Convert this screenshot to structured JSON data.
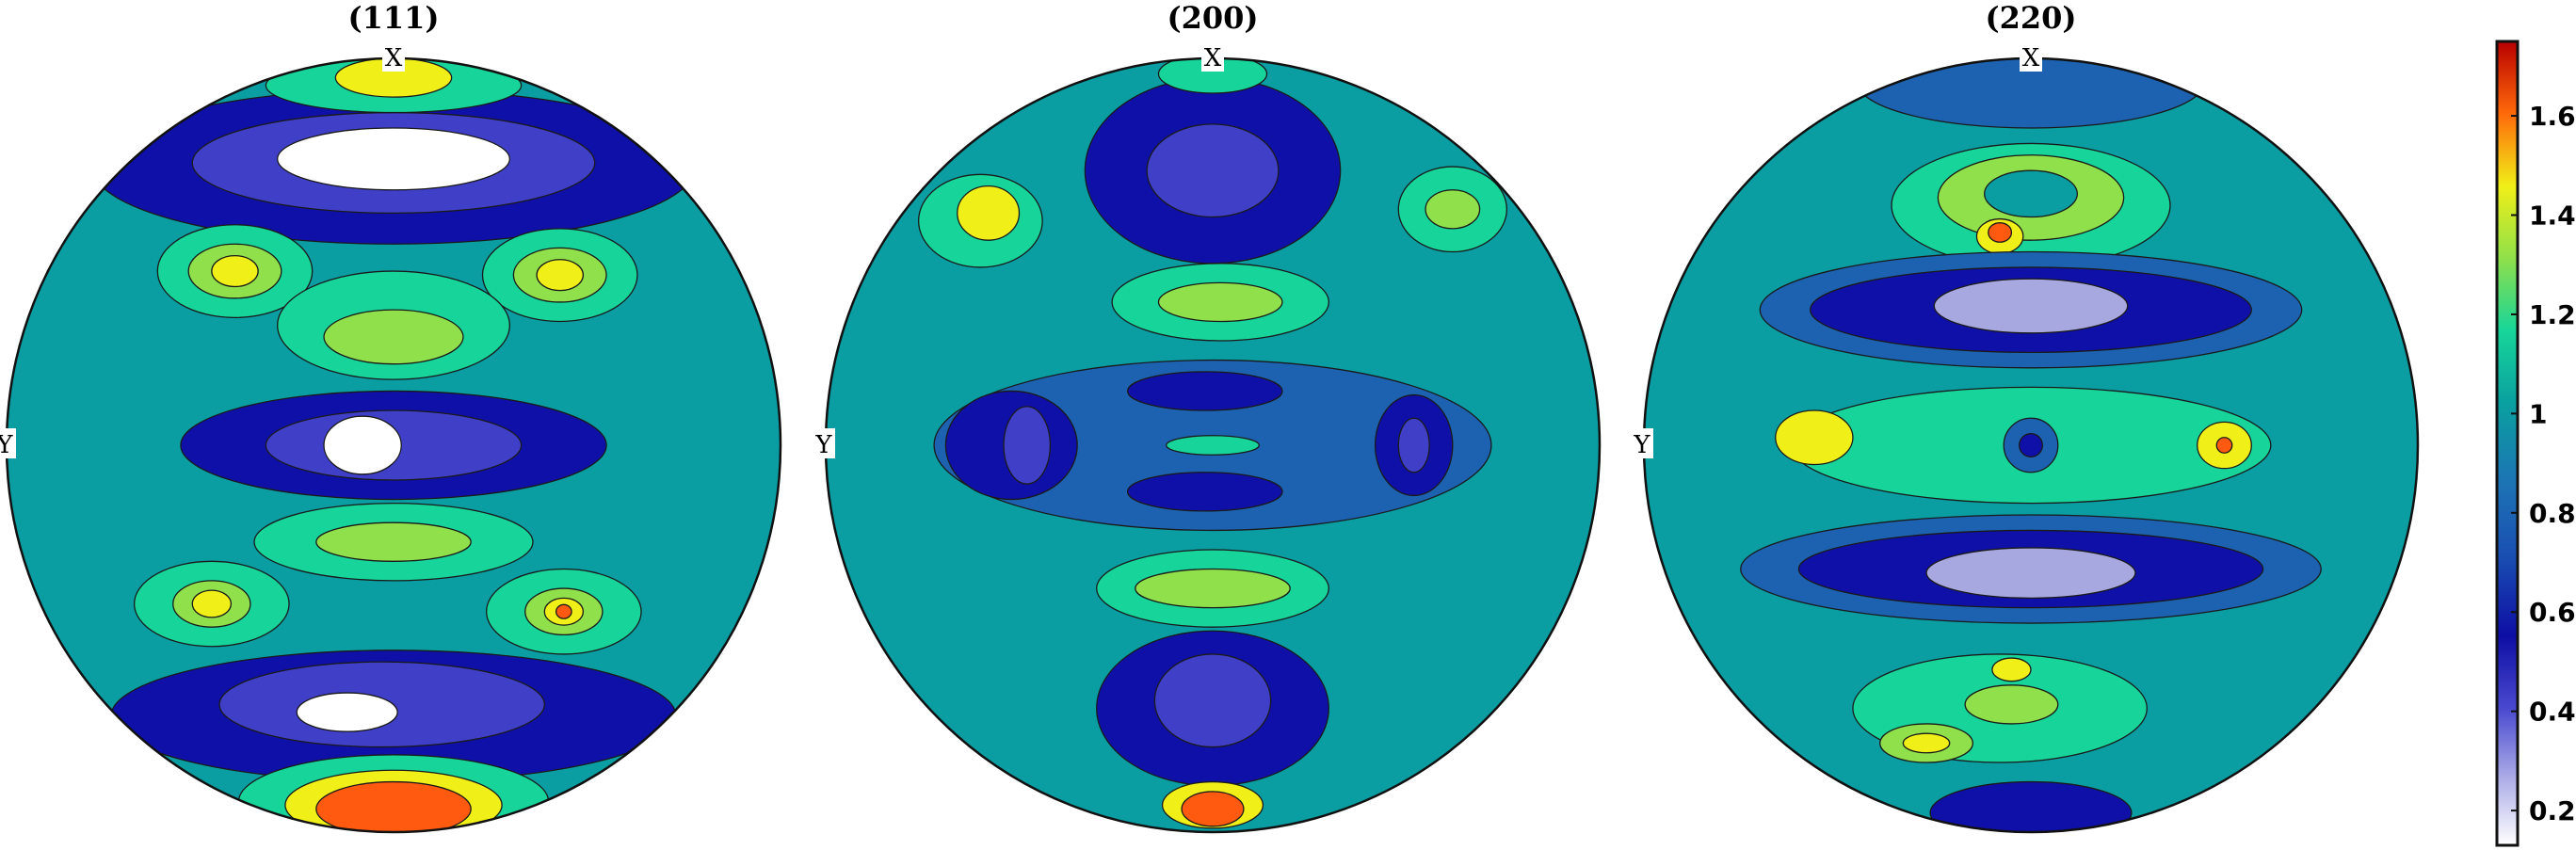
{
  "chart_data": {
    "type": "contour",
    "colorbar": {
      "ticks": [
        "0.2",
        "0.4",
        "0.6",
        "0.8",
        "1",
        "1.2",
        "1.4",
        "1.6"
      ],
      "tick_values": [
        0.2,
        0.4,
        0.6,
        0.8,
        1.0,
        1.2,
        1.4,
        1.6
      ],
      "range": [
        0.13,
        1.75
      ]
    },
    "level_colors": [
      "#ffffff",
      "#a8a8e0",
      "#3f3fc8",
      "#0f10a8",
      "#1d62b0",
      "#0a9ea3",
      "#17d59a",
      "#8fe04a",
      "#f0ef18",
      "#ff5a0f"
    ],
    "plots": [
      {
        "title": "(111)",
        "x_label": "X",
        "y_label": "Y",
        "levels": [
          {
            "shape": "ellipse",
            "cx": 0,
            "cy": 0,
            "rx": 1,
            "ry": 1,
            "level": 5
          },
          {
            "shape": "ellipse",
            "cx": 0,
            "cy": -0.72,
            "rx": 0.78,
            "ry": 0.2,
            "level": 3
          },
          {
            "shape": "ellipse",
            "cx": 0,
            "cy": -0.73,
            "rx": 0.52,
            "ry": 0.13,
            "level": 2
          },
          {
            "shape": "ellipse",
            "cx": 0,
            "cy": -0.74,
            "rx": 0.3,
            "ry": 0.08,
            "level": 0
          },
          {
            "shape": "ellipse",
            "cx": 0,
            "cy": -0.93,
            "rx": 0.33,
            "ry": 0.07,
            "level": 6
          },
          {
            "shape": "ellipse",
            "cx": 0,
            "cy": -0.95,
            "rx": 0.15,
            "ry": 0.05,
            "level": 8
          },
          {
            "shape": "ellipse",
            "cx": -0.41,
            "cy": -0.45,
            "rx": 0.2,
            "ry": 0.12,
            "level": 6
          },
          {
            "shape": "ellipse",
            "cx": -0.41,
            "cy": -0.45,
            "rx": 0.12,
            "ry": 0.07,
            "level": 7
          },
          {
            "shape": "ellipse",
            "cx": -0.41,
            "cy": -0.45,
            "rx": 0.06,
            "ry": 0.04,
            "level": 8
          },
          {
            "shape": "ellipse",
            "cx": 0.43,
            "cy": -0.44,
            "rx": 0.2,
            "ry": 0.12,
            "level": 6
          },
          {
            "shape": "ellipse",
            "cx": 0.43,
            "cy": -0.44,
            "rx": 0.12,
            "ry": 0.07,
            "level": 7
          },
          {
            "shape": "ellipse",
            "cx": 0.43,
            "cy": -0.44,
            "rx": 0.06,
            "ry": 0.04,
            "level": 8
          },
          {
            "shape": "ellipse",
            "cx": 0,
            "cy": -0.31,
            "rx": 0.3,
            "ry": 0.14,
            "level": 6
          },
          {
            "shape": "ellipse",
            "cx": 0,
            "cy": -0.28,
            "rx": 0.18,
            "ry": 0.07,
            "level": 7
          },
          {
            "shape": "ellipse",
            "cx": 0,
            "cy": 0,
            "rx": 0.55,
            "ry": 0.14,
            "level": 3
          },
          {
            "shape": "ellipse",
            "cx": 0,
            "cy": 0,
            "rx": 0.33,
            "ry": 0.09,
            "level": 2
          },
          {
            "shape": "ellipse",
            "cx": -0.08,
            "cy": 0,
            "rx": 0.1,
            "ry": 0.075,
            "level": 0
          },
          {
            "shape": "ellipse",
            "cx": 0,
            "cy": 0.25,
            "rx": 0.36,
            "ry": 0.1,
            "level": 6
          },
          {
            "shape": "ellipse",
            "cx": 0,
            "cy": 0.25,
            "rx": 0.2,
            "ry": 0.05,
            "level": 7
          },
          {
            "shape": "ellipse",
            "cx": -0.47,
            "cy": 0.41,
            "rx": 0.2,
            "ry": 0.11,
            "level": 6
          },
          {
            "shape": "ellipse",
            "cx": -0.47,
            "cy": 0.41,
            "rx": 0.1,
            "ry": 0.06,
            "level": 7
          },
          {
            "shape": "ellipse",
            "cx": -0.47,
            "cy": 0.41,
            "rx": 0.05,
            "ry": 0.035,
            "level": 8
          },
          {
            "shape": "ellipse",
            "cx": 0.44,
            "cy": 0.43,
            "rx": 0.2,
            "ry": 0.11,
            "level": 6
          },
          {
            "shape": "ellipse",
            "cx": 0.44,
            "cy": 0.43,
            "rx": 0.1,
            "ry": 0.06,
            "level": 7
          },
          {
            "shape": "ellipse",
            "cx": 0.44,
            "cy": 0.43,
            "rx": 0.05,
            "ry": 0.035,
            "level": 8
          },
          {
            "shape": "ellipse",
            "cx": 0.44,
            "cy": 0.43,
            "rx": 0.02,
            "ry": 0.018,
            "level": 9
          },
          {
            "shape": "ellipse",
            "cx": 0,
            "cy": 0.7,
            "rx": 0.73,
            "ry": 0.17,
            "level": 3
          },
          {
            "shape": "ellipse",
            "cx": -0.03,
            "cy": 0.67,
            "rx": 0.42,
            "ry": 0.11,
            "level": 2
          },
          {
            "shape": "ellipse",
            "cx": -0.12,
            "cy": 0.69,
            "rx": 0.13,
            "ry": 0.05,
            "level": 0
          },
          {
            "shape": "ellipse",
            "cx": 0,
            "cy": 0.92,
            "rx": 0.4,
            "ry": 0.12,
            "level": 6
          },
          {
            "shape": "ellipse",
            "cx": 0,
            "cy": 0.93,
            "rx": 0.28,
            "ry": 0.09,
            "level": 8
          },
          {
            "shape": "ellipse",
            "cx": 0,
            "cy": 0.94,
            "rx": 0.2,
            "ry": 0.07,
            "level": 9
          }
        ]
      },
      {
        "title": "(200)",
        "x_label": "X",
        "y_label": "Y",
        "levels": [
          {
            "shape": "ellipse",
            "cx": 0,
            "cy": 0,
            "rx": 1,
            "ry": 1,
            "level": 5
          },
          {
            "shape": "ellipse",
            "cx": 0,
            "cy": -0.71,
            "rx": 0.33,
            "ry": 0.24,
            "level": 3
          },
          {
            "shape": "ellipse",
            "cx": 0,
            "cy": -0.71,
            "rx": 0.17,
            "ry": 0.12,
            "level": 2
          },
          {
            "shape": "ellipse",
            "cx": 0,
            "cy": -0.96,
            "rx": 0.14,
            "ry": 0.05,
            "level": 6
          },
          {
            "shape": "ellipse",
            "cx": -0.6,
            "cy": -0.58,
            "rx": 0.16,
            "ry": 0.12,
            "level": 6
          },
          {
            "shape": "ellipse",
            "cx": -0.58,
            "cy": -0.6,
            "rx": 0.08,
            "ry": 0.07,
            "level": 8
          },
          {
            "shape": "ellipse",
            "cx": 0.62,
            "cy": -0.61,
            "rx": 0.14,
            "ry": 0.11,
            "level": 6
          },
          {
            "shape": "ellipse",
            "cx": 0.62,
            "cy": -0.61,
            "rx": 0.07,
            "ry": 0.05,
            "level": 7
          },
          {
            "shape": "ellipse",
            "cx": 0.02,
            "cy": -0.37,
            "rx": 0.28,
            "ry": 0.1,
            "level": 6
          },
          {
            "shape": "ellipse",
            "cx": 0.02,
            "cy": -0.37,
            "rx": 0.16,
            "ry": 0.05,
            "level": 7
          },
          {
            "shape": "ellipse",
            "cx": 0,
            "cy": 0,
            "rx": 0.72,
            "ry": 0.22,
            "level": 4
          },
          {
            "shape": "ellipse",
            "cx": -0.52,
            "cy": 0,
            "rx": 0.17,
            "ry": 0.14,
            "level": 3
          },
          {
            "shape": "ellipse",
            "cx": -0.48,
            "cy": 0,
            "rx": 0.06,
            "ry": 0.1,
            "level": 2
          },
          {
            "shape": "ellipse",
            "cx": 0.52,
            "cy": 0,
            "rx": 0.1,
            "ry": 0.13,
            "level": 3
          },
          {
            "shape": "ellipse",
            "cx": 0.52,
            "cy": 0,
            "rx": 0.04,
            "ry": 0.07,
            "level": 2
          },
          {
            "shape": "ellipse",
            "cx": -0.02,
            "cy": -0.14,
            "rx": 0.2,
            "ry": 0.05,
            "level": 3
          },
          {
            "shape": "ellipse",
            "cx": -0.02,
            "cy": 0.12,
            "rx": 0.2,
            "ry": 0.05,
            "level": 3
          },
          {
            "shape": "ellipse",
            "cx": 0,
            "cy": 0,
            "rx": 0.12,
            "ry": 0.025,
            "level": 6
          },
          {
            "shape": "ellipse",
            "cx": 0,
            "cy": 0.37,
            "rx": 0.3,
            "ry": 0.1,
            "level": 6
          },
          {
            "shape": "ellipse",
            "cx": 0,
            "cy": 0.37,
            "rx": 0.2,
            "ry": 0.05,
            "level": 7
          },
          {
            "shape": "ellipse",
            "cx": 0,
            "cy": 0.68,
            "rx": 0.3,
            "ry": 0.2,
            "level": 3
          },
          {
            "shape": "ellipse",
            "cx": 0,
            "cy": 0.66,
            "rx": 0.15,
            "ry": 0.12,
            "level": 2
          },
          {
            "shape": "ellipse",
            "cx": 0,
            "cy": 0.93,
            "rx": 0.13,
            "ry": 0.06,
            "level": 8
          },
          {
            "shape": "ellipse",
            "cx": 0,
            "cy": 0.94,
            "rx": 0.08,
            "ry": 0.045,
            "level": 9
          }
        ]
      },
      {
        "title": "(220)",
        "x_label": "X",
        "y_label": "Y",
        "levels": [
          {
            "shape": "ellipse",
            "cx": 0,
            "cy": 0,
            "rx": 1,
            "ry": 1,
            "level": 5
          },
          {
            "shape": "ellipse",
            "cx": 0,
            "cy": -0.94,
            "rx": 0.45,
            "ry": 0.12,
            "level": 4
          },
          {
            "shape": "ellipse",
            "cx": 0,
            "cy": -0.62,
            "rx": 0.36,
            "ry": 0.16,
            "level": 6
          },
          {
            "shape": "ellipse",
            "cx": 0,
            "cy": -0.64,
            "rx": 0.24,
            "ry": 0.11,
            "level": 7
          },
          {
            "shape": "ellipse",
            "cx": 0,
            "cy": -0.65,
            "rx": 0.12,
            "ry": 0.06,
            "level": 5
          },
          {
            "shape": "ellipse",
            "cx": -0.08,
            "cy": -0.54,
            "rx": 0.06,
            "ry": 0.045,
            "level": 8
          },
          {
            "shape": "ellipse",
            "cx": -0.08,
            "cy": -0.55,
            "rx": 0.03,
            "ry": 0.025,
            "level": 9
          },
          {
            "shape": "ellipse",
            "cx": 0,
            "cy": -0.35,
            "rx": 0.7,
            "ry": 0.15,
            "level": 4
          },
          {
            "shape": "ellipse",
            "cx": 0,
            "cy": -0.35,
            "rx": 0.57,
            "ry": 0.11,
            "level": 3
          },
          {
            "shape": "ellipse",
            "cx": 0,
            "cy": -0.36,
            "rx": 0.25,
            "ry": 0.07,
            "level": 1
          },
          {
            "shape": "ellipse",
            "cx": 0,
            "cy": 0,
            "rx": 0.62,
            "ry": 0.15,
            "level": 6
          },
          {
            "shape": "ellipse",
            "cx": -0.56,
            "cy": -0.02,
            "rx": 0.1,
            "ry": 0.07,
            "level": 8
          },
          {
            "shape": "ellipse",
            "cx": 0.5,
            "cy": 0,
            "rx": 0.07,
            "ry": 0.06,
            "level": 8
          },
          {
            "shape": "ellipse",
            "cx": 0.5,
            "cy": 0,
            "rx": 0.02,
            "ry": 0.02,
            "level": 9
          },
          {
            "shape": "ellipse",
            "cx": 0,
            "cy": 0,
            "rx": 0.07,
            "ry": 0.07,
            "level": 4
          },
          {
            "shape": "ellipse",
            "cx": 0,
            "cy": 0,
            "rx": 0.03,
            "ry": 0.03,
            "level": 3
          },
          {
            "shape": "ellipse",
            "cx": 0,
            "cy": 0.32,
            "rx": 0.75,
            "ry": 0.14,
            "level": 4
          },
          {
            "shape": "ellipse",
            "cx": 0,
            "cy": 0.32,
            "rx": 0.6,
            "ry": 0.1,
            "level": 3
          },
          {
            "shape": "ellipse",
            "cx": 0,
            "cy": 0.33,
            "rx": 0.27,
            "ry": 0.065,
            "level": 1
          },
          {
            "shape": "ellipse",
            "cx": -0.08,
            "cy": 0.68,
            "rx": 0.38,
            "ry": 0.14,
            "level": 6
          },
          {
            "shape": "ellipse",
            "cx": -0.05,
            "cy": 0.67,
            "rx": 0.12,
            "ry": 0.05,
            "level": 7
          },
          {
            "shape": "ellipse",
            "cx": -0.05,
            "cy": 0.58,
            "rx": 0.05,
            "ry": 0.03,
            "level": 8
          },
          {
            "shape": "ellipse",
            "cx": -0.27,
            "cy": 0.77,
            "rx": 0.12,
            "ry": 0.05,
            "level": 7
          },
          {
            "shape": "ellipse",
            "cx": -0.27,
            "cy": 0.77,
            "rx": 0.06,
            "ry": 0.025,
            "level": 8
          },
          {
            "shape": "ellipse",
            "cx": 0,
            "cy": 0.95,
            "rx": 0.26,
            "ry": 0.08,
            "level": 3
          }
        ]
      }
    ]
  }
}
